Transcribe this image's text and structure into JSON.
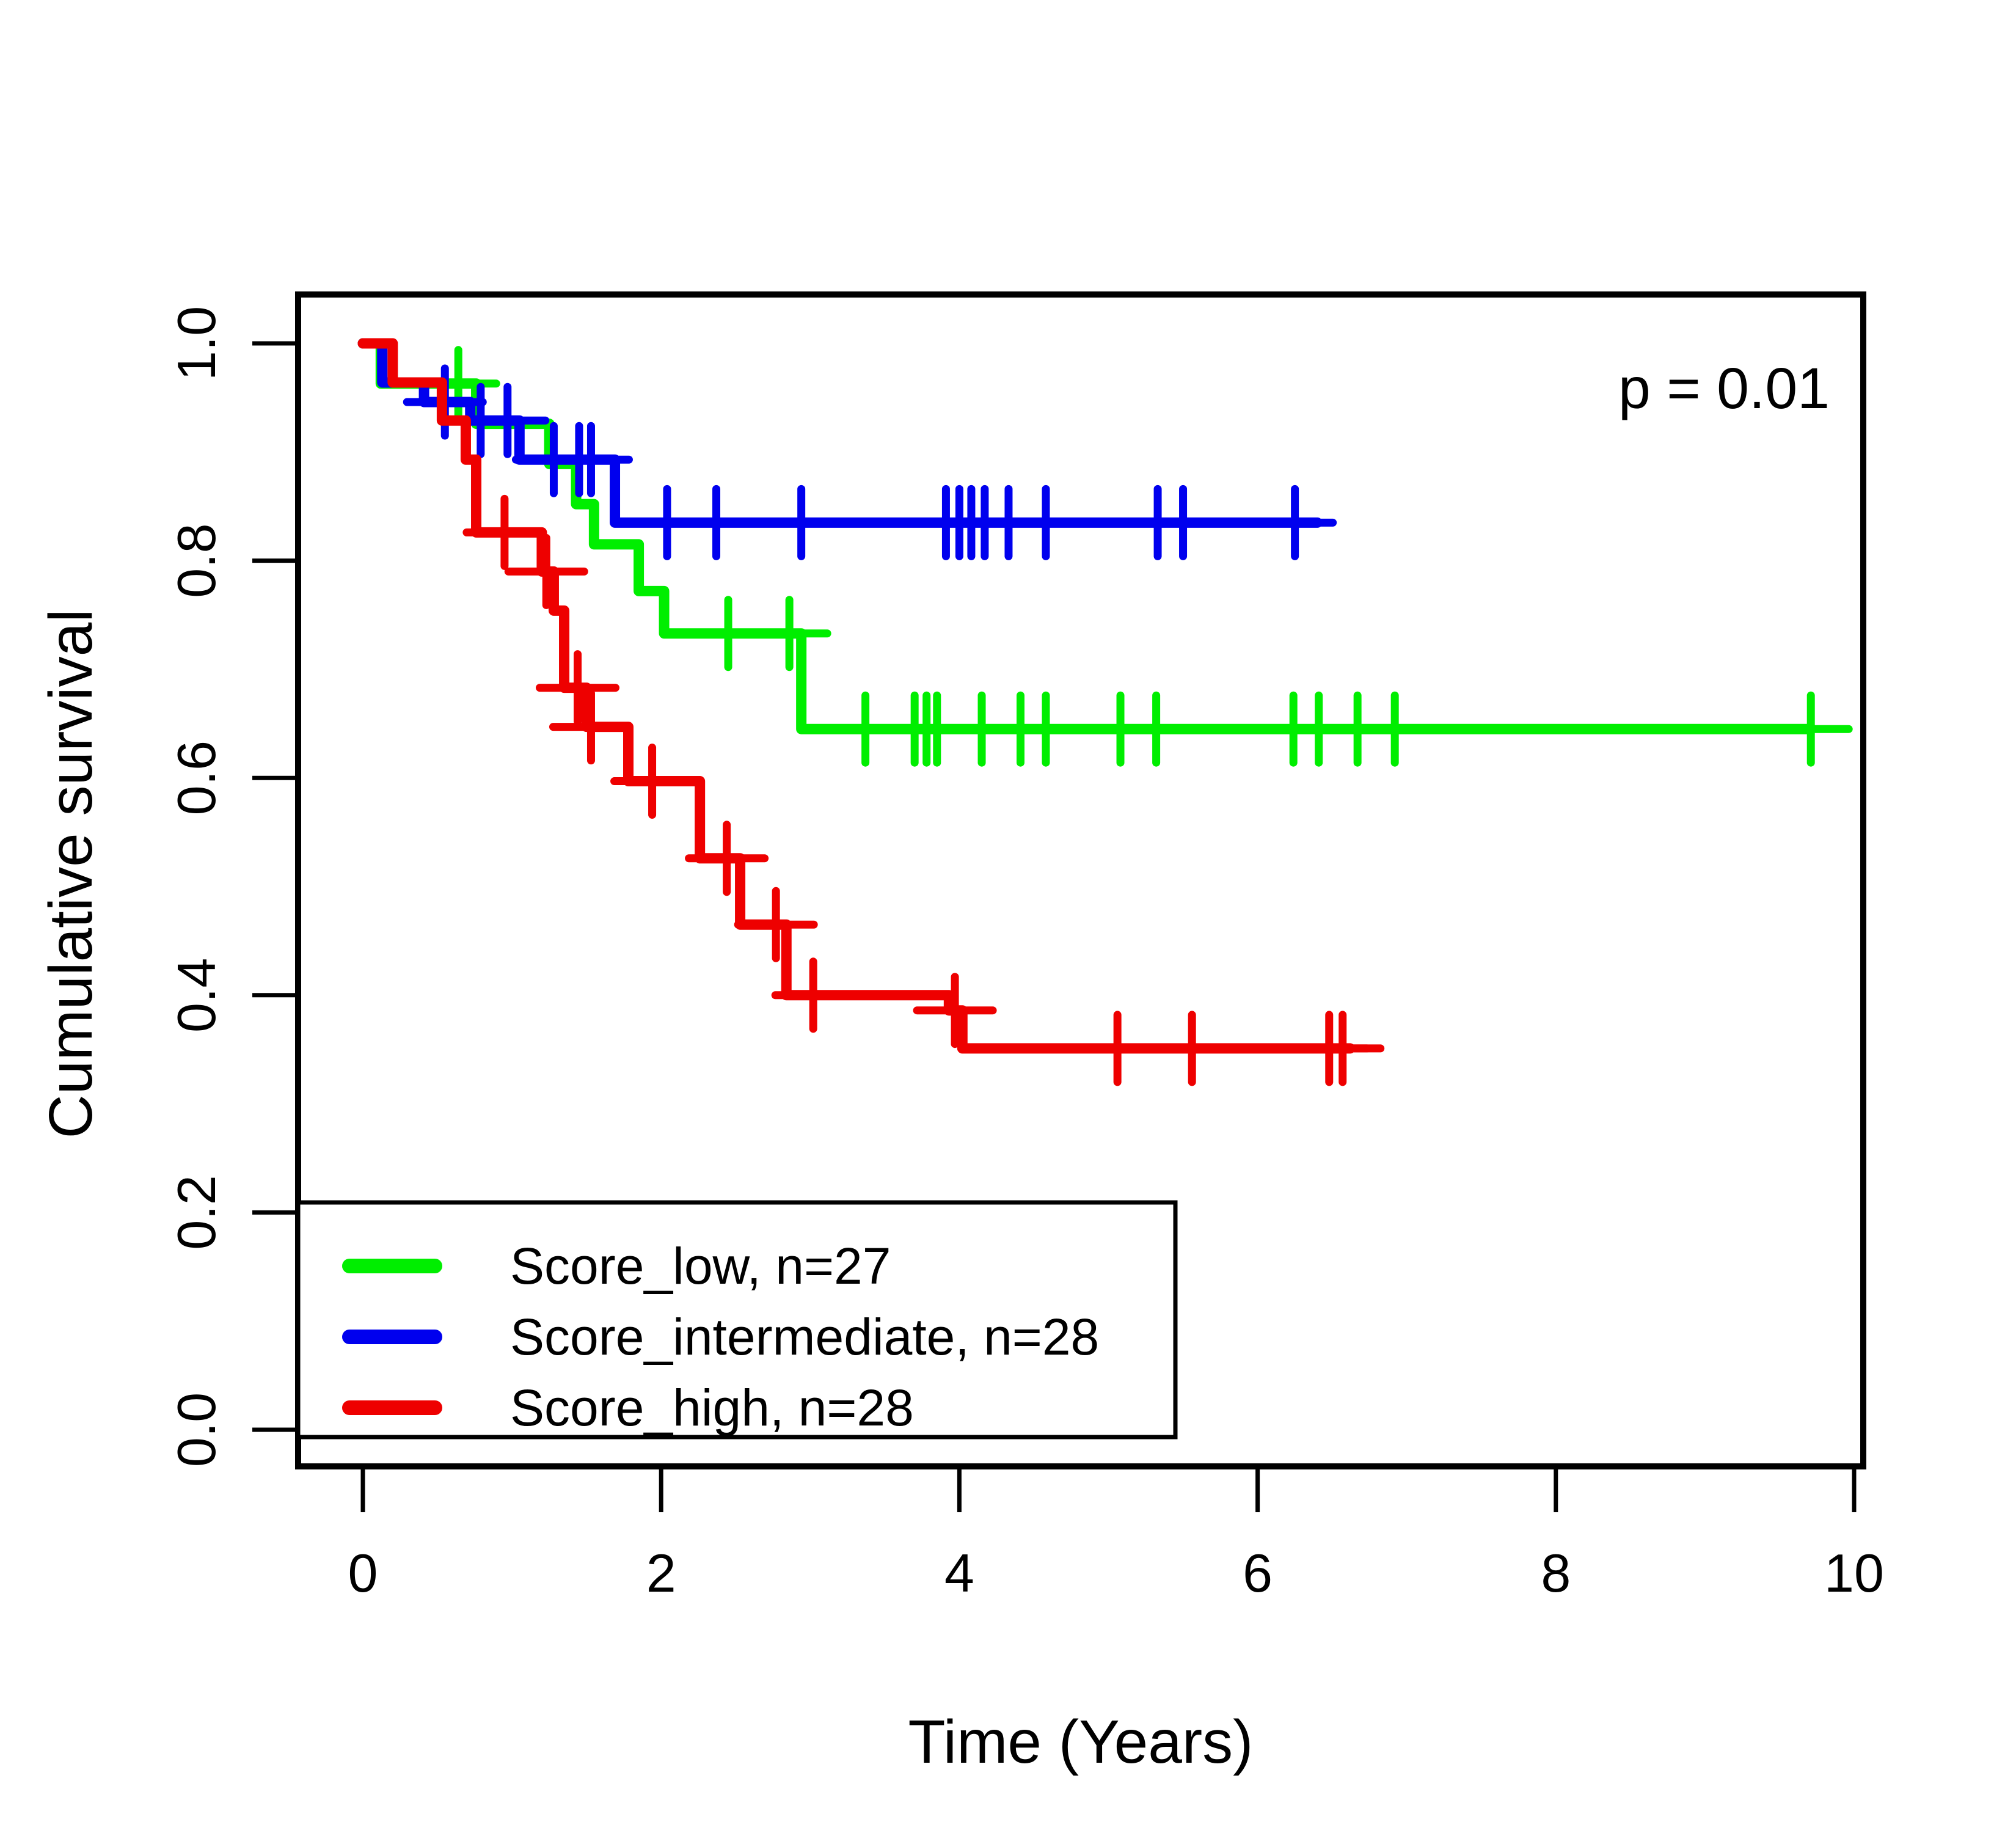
{
  "chart_data": {
    "type": "line",
    "subtype": "kaplan-meier-step",
    "title": "",
    "xlabel": "Time (Years)",
    "ylabel": "Cumulative survival",
    "annotation": "p = 0.01",
    "xlim": [
      0,
      10
    ],
    "ylim": [
      0.0,
      1.0
    ],
    "xticks": [
      "0",
      "2",
      "4",
      "6",
      "8",
      "10"
    ],
    "yticks": [
      "0.0",
      "0.2",
      "0.4",
      "0.6",
      "0.8",
      "1.0"
    ],
    "grid": false,
    "legend_position": "bottom-left",
    "axis_color": "#000000",
    "background_color": "#ffffff",
    "series": [
      {
        "name": "Score_low, n=27",
        "group": "Score_low",
        "n": 27,
        "color": "#00ee00",
        "start": [
          0,
          1.0
        ],
        "steps": [
          [
            0.12,
            0.963
          ],
          [
            0.76,
            0.926
          ],
          [
            1.25,
            0.889
          ],
          [
            1.43,
            0.852
          ],
          [
            1.55,
            0.815
          ],
          [
            1.85,
            0.772
          ],
          [
            2.02,
            0.733
          ],
          [
            2.94,
            0.645
          ]
        ],
        "end": 9.71,
        "censors": [
          [
            0.64,
            0.963
          ],
          [
            2.45,
            0.733
          ],
          [
            2.86,
            0.733
          ],
          [
            3.37,
            0.645
          ],
          [
            3.7,
            0.645
          ],
          [
            3.78,
            0.645
          ],
          [
            3.85,
            0.645
          ],
          [
            4.15,
            0.645
          ],
          [
            4.41,
            0.645
          ],
          [
            4.58,
            0.645
          ],
          [
            5.08,
            0.645
          ],
          [
            5.32,
            0.645
          ],
          [
            6.24,
            0.645
          ],
          [
            6.41,
            0.645
          ],
          [
            6.67,
            0.645
          ],
          [
            6.92,
            0.645
          ],
          [
            9.71,
            0.645
          ]
        ]
      },
      {
        "name": "Score_intermediate, n=28",
        "group": "Score_intermediate",
        "n": 28,
        "color": "#0000ee",
        "start": [
          0,
          1.0
        ],
        "steps": [
          [
            0.13,
            0.964
          ],
          [
            0.41,
            0.946
          ],
          [
            0.72,
            0.929
          ],
          [
            1.05,
            0.893
          ],
          [
            1.69,
            0.835
          ]
        ],
        "end": 6.4,
        "censors": [
          [
            0.55,
            0.946
          ],
          [
            0.79,
            0.929
          ],
          [
            0.97,
            0.929
          ],
          [
            1.28,
            0.893
          ],
          [
            1.45,
            0.893
          ],
          [
            1.53,
            0.893
          ],
          [
            2.04,
            0.835
          ],
          [
            2.37,
            0.835
          ],
          [
            2.94,
            0.835
          ],
          [
            3.91,
            0.835
          ],
          [
            4.0,
            0.835
          ],
          [
            4.08,
            0.835
          ],
          [
            4.17,
            0.835
          ],
          [
            4.33,
            0.835
          ],
          [
            4.58,
            0.835
          ],
          [
            5.33,
            0.835
          ],
          [
            5.5,
            0.835
          ],
          [
            6.25,
            0.835
          ]
        ]
      },
      {
        "name": "Score_high, n=28",
        "group": "Score_high",
        "n": 28,
        "color": "#ee0000",
        "start": [
          0,
          1.0
        ],
        "steps": [
          [
            0.2,
            0.964
          ],
          [
            0.53,
            0.929
          ],
          [
            0.69,
            0.893
          ],
          [
            0.76,
            0.826
          ],
          [
            1.2,
            0.79
          ],
          [
            1.28,
            0.754
          ],
          [
            1.35,
            0.683
          ],
          [
            1.5,
            0.647
          ],
          [
            1.78,
            0.597
          ],
          [
            2.26,
            0.526
          ],
          [
            2.53,
            0.465
          ],
          [
            2.84,
            0.4
          ],
          [
            3.93,
            0.386
          ],
          [
            4.02,
            0.351
          ]
        ],
        "end": 6.62,
        "censors": [
          [
            0.95,
            0.826
          ],
          [
            1.23,
            0.79
          ],
          [
            1.44,
            0.683
          ],
          [
            1.53,
            0.647
          ],
          [
            1.94,
            0.597
          ],
          [
            2.44,
            0.526
          ],
          [
            2.77,
            0.465
          ],
          [
            3.02,
            0.4
          ],
          [
            3.97,
            0.386
          ],
          [
            5.06,
            0.351
          ],
          [
            5.56,
            0.351
          ],
          [
            6.48,
            0.351
          ],
          [
            6.57,
            0.351
          ]
        ]
      }
    ]
  }
}
